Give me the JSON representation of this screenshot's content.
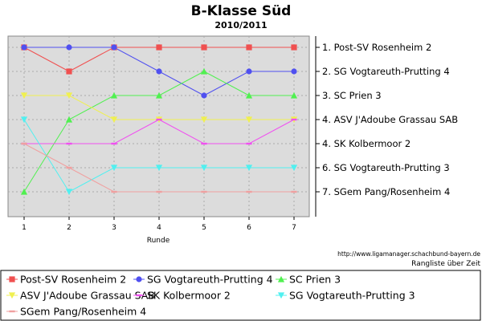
{
  "title": "B-Klasse Süd",
  "subtitle": "2010/2011",
  "xlabel": "Runde",
  "source_url": "http://www.ligamanager.schachbund-bayern.de",
  "source_caption": "Rangliste über Zeit",
  "chart_data": {
    "type": "line",
    "title": "B-Klasse Süd",
    "subtitle": "2010/2011",
    "xlabel": "Runde",
    "ylabel": "",
    "x": [
      1,
      2,
      3,
      4,
      5,
      6,
      7
    ],
    "ylim": [
      1,
      7
    ],
    "y_inverted": true,
    "grid": true,
    "legend_position": "bottom",
    "right_labels": [
      "1. Post-SV Rosenheim 2",
      "2. SG Vogtareuth-Prutting 4",
      "3. SC Prien 3",
      "4. ASV J'Adoube Grassau SAB",
      "4. SK Kolbermoor 2",
      "6. SG Vogtareuth-Prutting 3",
      "7. SGem Pang/Rosenheim 4"
    ],
    "series": [
      {
        "name": "Post-SV Rosenheim 2",
        "color": "#f05050",
        "marker": "square",
        "values": [
          1,
          2,
          1,
          1,
          1,
          1,
          1
        ]
      },
      {
        "name": "SG Vogtareuth-Prutting 4",
        "color": "#5050f0",
        "marker": "circle",
        "values": [
          1,
          1,
          1,
          2,
          3,
          2,
          2
        ]
      },
      {
        "name": "SC Prien 3",
        "color": "#50f050",
        "marker": "triangle-up",
        "values": [
          7,
          4,
          3,
          3,
          2,
          3,
          3
        ]
      },
      {
        "name": "ASV J'Adoube Grassau SAB",
        "color": "#f0f050",
        "marker": "triangle-down",
        "values": [
          3,
          3,
          4,
          4,
          4,
          4,
          4
        ]
      },
      {
        "name": "SK Kolbermoor 2",
        "color": "#f050f0",
        "marker": "dash",
        "values": [
          5,
          5,
          5,
          4,
          5,
          5,
          4
        ]
      },
      {
        "name": "SG Vogtareuth-Prutting 3",
        "color": "#50f0f0",
        "marker": "triangle-down",
        "values": [
          4,
          7,
          6,
          6,
          6,
          6,
          6
        ]
      },
      {
        "name": "SGem Pang/Rosenheim 4",
        "color": "#f0a0a0",
        "marker": "dash",
        "values": [
          5,
          6,
          7,
          7,
          7,
          7,
          7
        ]
      }
    ]
  }
}
